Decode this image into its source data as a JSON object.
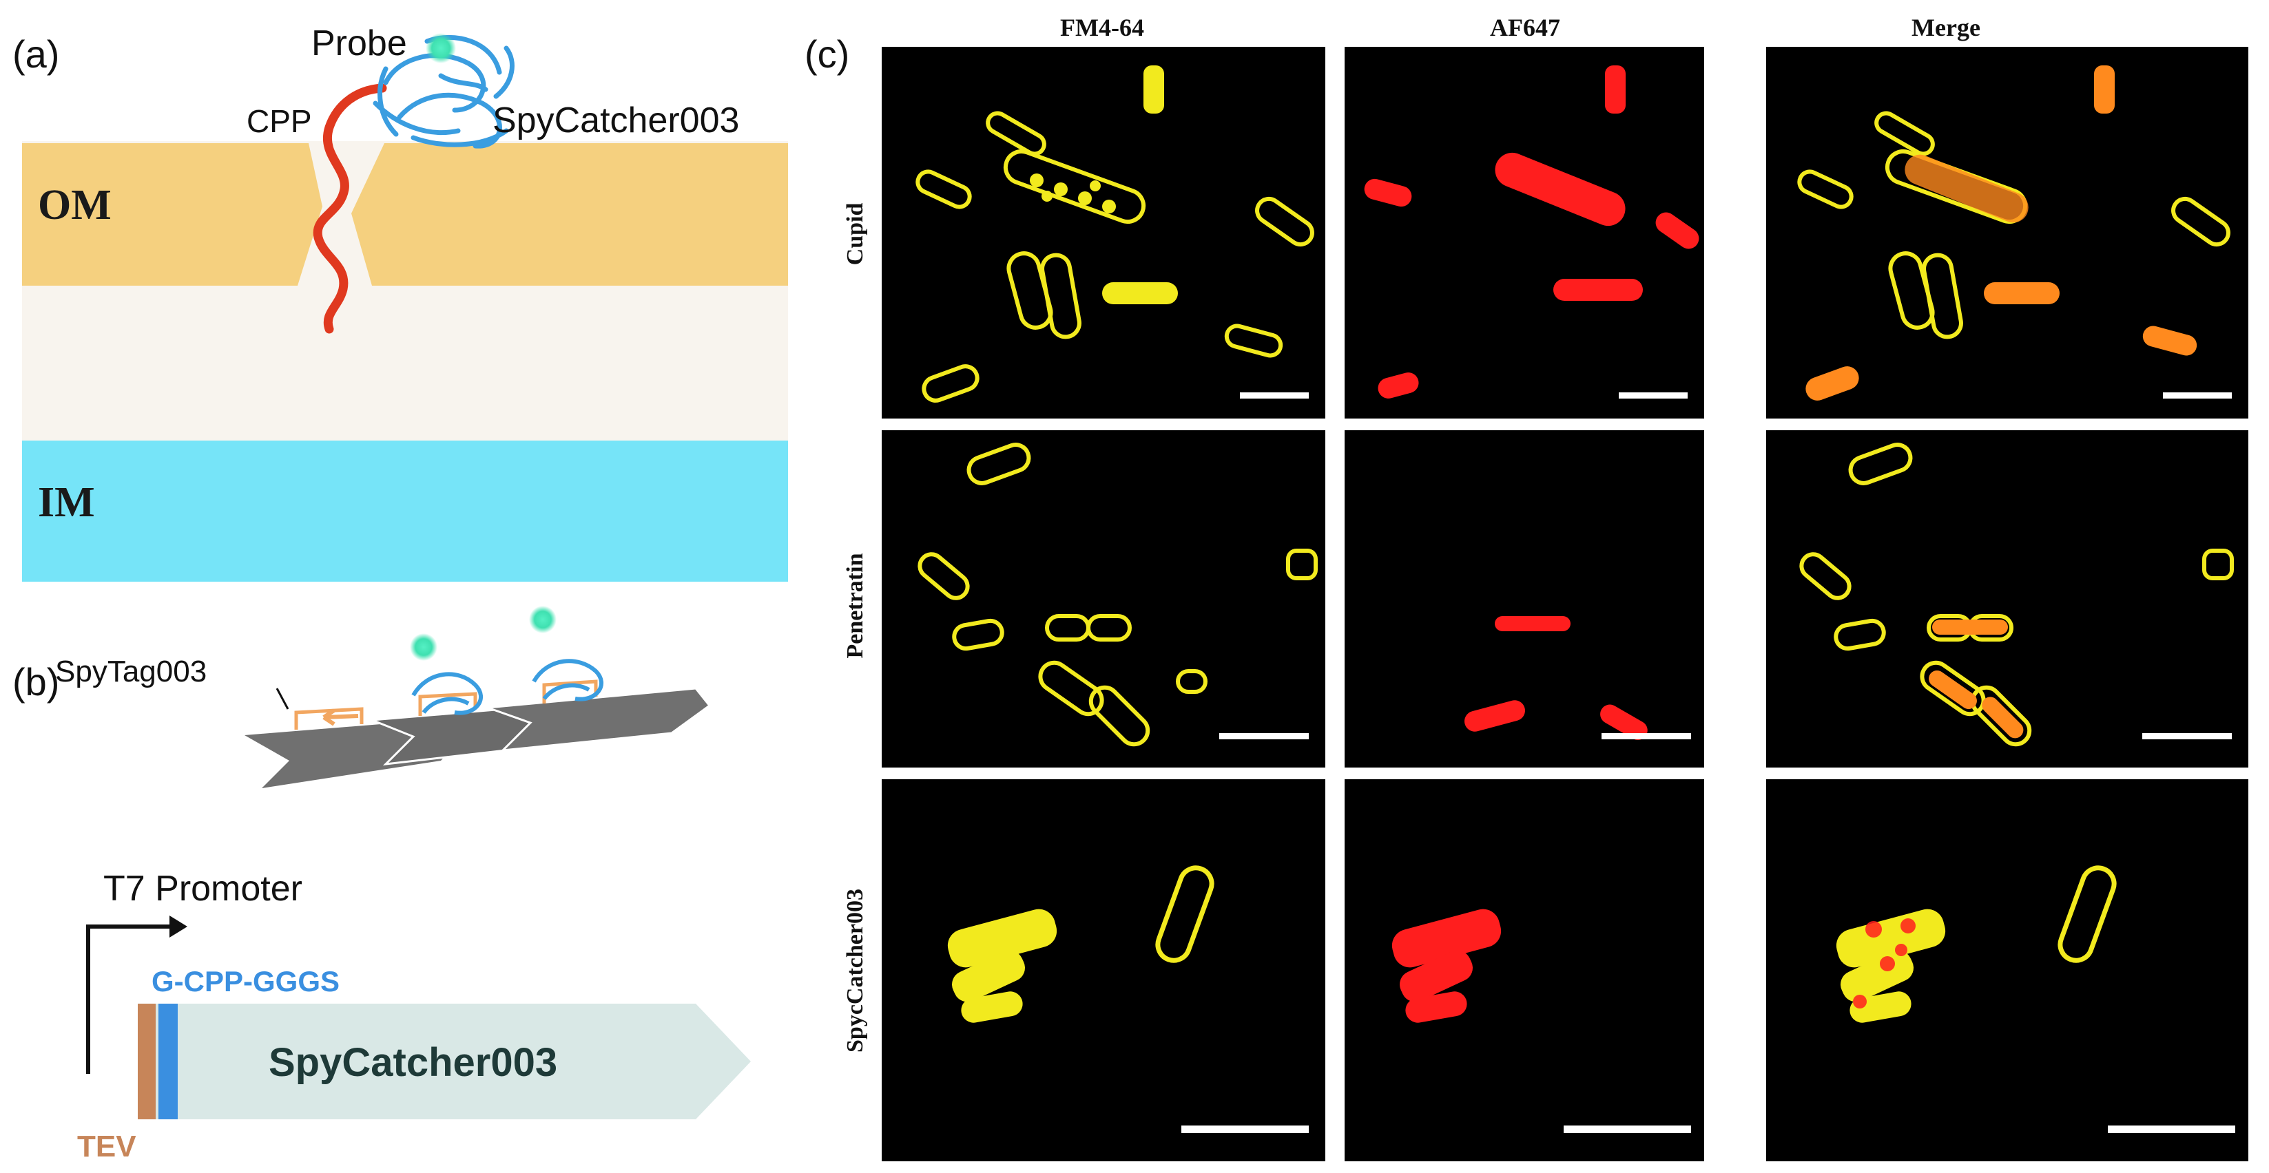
{
  "panel_a": {
    "label": "(a)",
    "probe_label": "Probe",
    "cpp_label": "CPP",
    "spycatcher_label": "SpyCatcher003",
    "om_label": "OM",
    "im_label": "IM"
  },
  "panel_b": {
    "label": "(b)",
    "spytag_label": "SpyTag003",
    "promoter_label": "T7 Promoter",
    "linker_label": "G-CPP-GGGS",
    "gene_label": "SpyCatcher003",
    "tev_label": "TEV"
  },
  "panel_c": {
    "label": "(c)",
    "columns": [
      "FM4-64",
      "AF647",
      "Merge"
    ],
    "rows": [
      "Cupid",
      "Penetratin",
      "SpycCatcher003"
    ]
  },
  "colors": {
    "outer_membrane": "#f5d07f",
    "periplasm": "#f8f4ee",
    "inner_membrane": "#76e4f8",
    "cpp_peptide": "#e0391f",
    "spycatcher_ribbon": "#3a9de0",
    "probe": "#3fe0b0",
    "fibril": "#707070",
    "spytag": "#f2a660",
    "tev_box": "#c78559",
    "linker_box": "#3a8fe0",
    "gene_arrow": "#d9e8e6",
    "fm464_signal": "#f2ea1e",
    "af647_signal": "#ff1e1e",
    "merge_overlap": "#ff8a1e"
  }
}
